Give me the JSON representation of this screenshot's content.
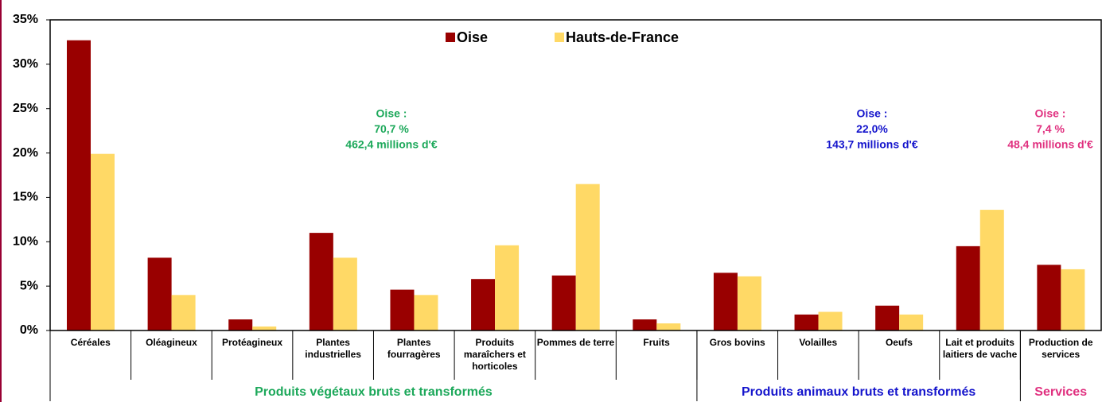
{
  "chart_data": {
    "type": "bar",
    "categories": [
      "Céréales",
      "Oléagineux",
      "Protéagineux",
      "Plantes industrielles",
      "Plantes fourragères",
      "Produits maraîchers et horticoles",
      "Pommes de terre",
      "Fruits",
      "Gros bovins",
      "Volailles",
      "Oeufs",
      "Lait et produits laitiers de vache",
      "Production de services"
    ],
    "series": [
      {
        "name": "Oise",
        "color": "#990000",
        "values": [
          32.7,
          8.2,
          1.25,
          11.0,
          4.6,
          5.8,
          6.2,
          1.25,
          6.5,
          1.8,
          2.8,
          9.5,
          7.4
        ]
      },
      {
        "name": "Hauts-de-France",
        "color": "#ffd966",
        "values": [
          19.9,
          4.0,
          0.45,
          8.2,
          4.0,
          9.6,
          16.5,
          0.8,
          6.1,
          2.1,
          1.8,
          13.6,
          6.9
        ]
      }
    ],
    "ylim": [
      0,
      35
    ],
    "yticks": [
      {
        "value": 0,
        "label": "0%"
      },
      {
        "value": 5,
        "label": "5%"
      },
      {
        "value": 10,
        "label": "10%"
      },
      {
        "value": 15,
        "label": "15%"
      },
      {
        "value": 20,
        "label": "20%"
      },
      {
        "value": 25,
        "label": "25%"
      },
      {
        "value": 30,
        "label": "30%"
      },
      {
        "value": 35,
        "label": "35%"
      }
    ],
    "legend": "top",
    "groups": [
      {
        "label": "Produits végétaux bruts et transformés",
        "color": "#1ca85a",
        "span": 8,
        "annotation": [
          "Oise :",
          "70,7 %",
          "462,4 millions d'€"
        ]
      },
      {
        "label": "Produits animaux bruts et transformés",
        "color": "#1414cc",
        "span": 4,
        "annotation": [
          "Oise :",
          "22,0%",
          "143,7 millions d'€"
        ]
      },
      {
        "label": "Services",
        "color": "#e0307f",
        "span": 1,
        "annotation": [
          "Oise :",
          "7,4 %",
          "48,4 millions d'€"
        ]
      }
    ]
  }
}
